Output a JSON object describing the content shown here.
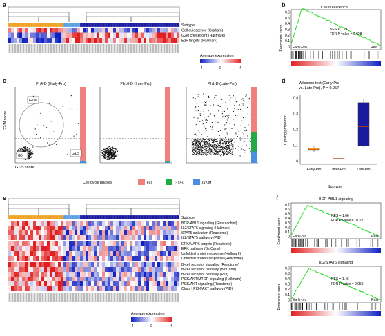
{
  "panels": {
    "a": {
      "label": "a",
      "rows": [
        "Subtype",
        "Cell quiescence (Graham)",
        "G2M checkpoint (Hallmark)",
        "E2F targets (Hallmark)"
      ],
      "legend_title": "Average expression",
      "legend_ticks": [
        "-4",
        "0",
        "4"
      ]
    },
    "b": {
      "label": "b",
      "title": "Cell quiescence",
      "nes": "NES = 1.74",
      "fdr": "FDR P value = 0.028",
      "ylabel": "Enrichment score",
      "yticks": [
        "0.6",
        "0.5",
        "0.4",
        "0.3",
        "0.2",
        "0.1",
        "0"
      ],
      "left": "Early-Pro",
      "right": "Rest"
    },
    "c": {
      "label": "c",
      "plots": [
        {
          "title": "Ph4-D (Early-Pro)"
        },
        {
          "title": "Ph16-D (Inter-Pro)"
        },
        {
          "title": "Ph1-D (Late-Pro)"
        }
      ],
      "g2m_box": "G2/M",
      "g0_box": "G0",
      "g1s_box": "G1/S",
      "ylabel": "G2/M score",
      "xlabel": "G1/S score",
      "legend_title": "Cell cycle phases",
      "legend_items": [
        {
          "label": "G0",
          "color": "#f08080"
        },
        {
          "label": "G1/S",
          "color": "#22aa44"
        },
        {
          "label": "G2/M",
          "color": "#4a90e2"
        }
      ]
    },
    "d": {
      "label": "d",
      "title_line1": "Wilcoxon test (Early-Pro",
      "title_line2": "vs. Late-Pro), P = 0.057",
      "ylabel": "Cycling proportion",
      "yticks": [
        "0.4",
        "0.3",
        "0.2",
        "0.1",
        "0"
      ],
      "categories": [
        "Early-Pro",
        "Inter-Pro",
        "Late-Pro"
      ],
      "xlabel": "Subtype"
    },
    "e": {
      "label": "e",
      "rows": [
        "Subtype",
        "BCR-ABL1 signaling (Giustacchini)",
        "IL2/STAT5 signaling (Hallmark)",
        "STAT5 activation (Reactome)",
        "IL2/STAT5 pathway (PID)",
        "ERK/MAPK targets (Reactome)",
        "ERK pathway (BioCarta)",
        "Unfolded protein response (Hallmark)",
        "Unfolded protein response (Reactome)",
        "B-cell receptor signaling (Reactome)",
        "B-cell receptor pathway (BioCarta)",
        "B-cell receptor pathway (PID)",
        "PI3K/AKT/MTOR signaling (Hallmark)",
        "PI3K/AKT signaling (Reactome)",
        "Class I PI3K/AKT pathway (PID)"
      ],
      "legend_title": "Average expression",
      "legend_ticks": [
        "-4",
        "0",
        "4"
      ]
    },
    "f": {
      "label": "f",
      "plots": [
        {
          "title": "BCR-ABL1 signaling",
          "nes": "NES = 1.66",
          "fdr": "FDR P value = 0.022",
          "left": "Early-pro",
          "right": "Rest",
          "yticks": [
            "0.7",
            "0.6",
            "0.5",
            "0.4",
            "0.3",
            "0.2",
            "0.1",
            "0"
          ]
        },
        {
          "title": "IL2/STAT5 signaling",
          "nes": "NES = 1.46",
          "fdr": "FDR P value = 0.059",
          "left": "Early-pro",
          "right": "Rest",
          "yticks": [
            "0.6",
            "0.5",
            "0.4",
            "0.3",
            "0.2",
            "0.1",
            "0"
          ]
        }
      ],
      "ylabel": "Enrichment score"
    }
  },
  "colors": {
    "early": "#f0a020",
    "inter": "#5aa0e0",
    "late": "#1a1aa0",
    "red": "#e02020",
    "blue": "#1020c0",
    "curve": "#22dd22"
  }
}
